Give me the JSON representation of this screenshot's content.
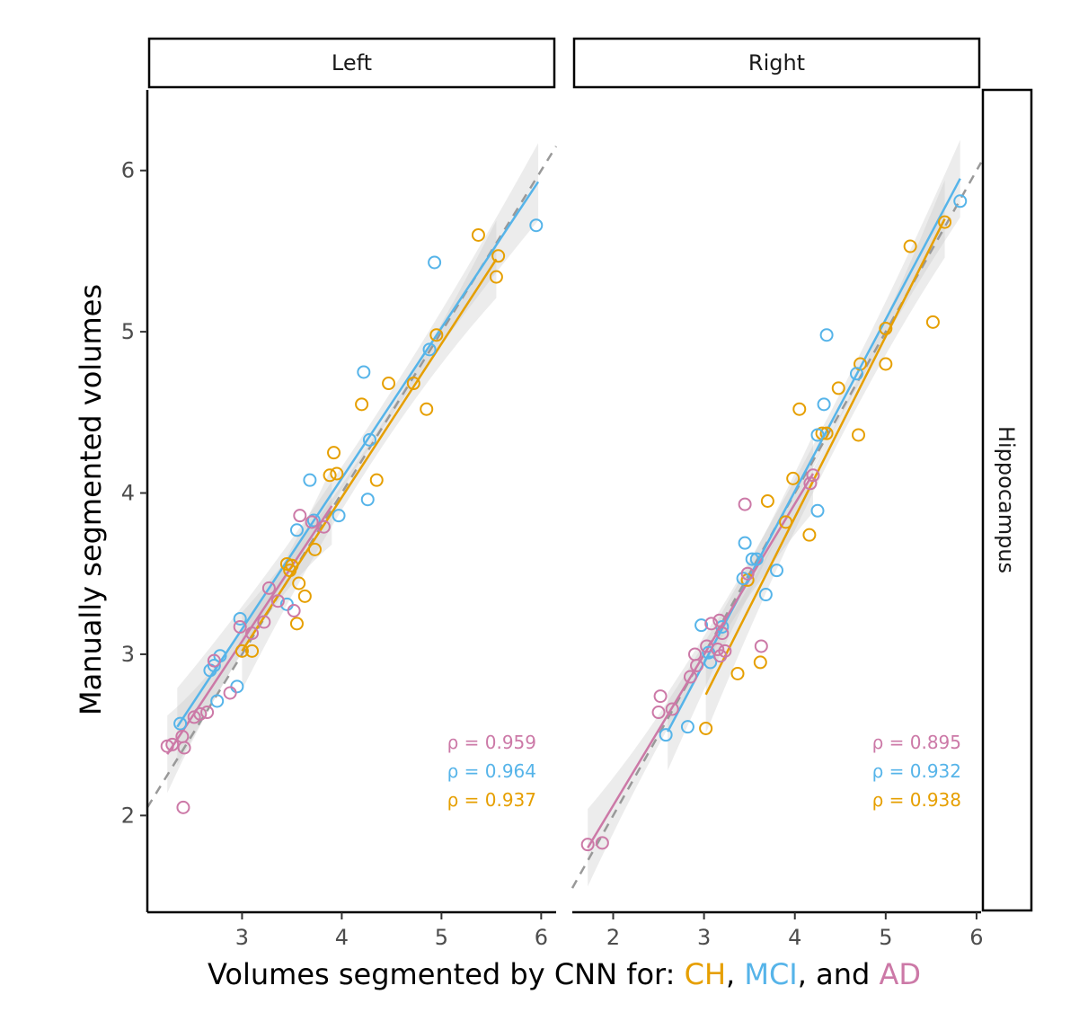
{
  "colors": {
    "CH": "#E69F00",
    "MCI": "#56B4E9",
    "AD": "#CC79A7",
    "identity": "#999999",
    "ribbon": "#c8c8c8"
  },
  "axis_labels": {
    "y": "Manually segmented volumes",
    "x_prefix": "Volumes segmented by CNN for: ",
    "x_ch": "CH",
    "x_sep1": ", ",
    "x_mci": "MCI",
    "x_sep2": ", and ",
    "x_ad": "AD"
  },
  "facet_row_label": "Hippocampus",
  "chart_data": [
    {
      "type": "scatter",
      "facet": "Left",
      "xlim": [
        2.05,
        6.15
      ],
      "ylim": [
        1.4,
        6.5
      ],
      "xticks": [
        3,
        4,
        5,
        6
      ],
      "yticks": [
        2,
        3,
        4,
        5,
        6
      ],
      "identity_line": true,
      "rho_labels": [
        {
          "group": "AD",
          "text": "ρ = 0.959"
        },
        {
          "group": "MCI",
          "text": "ρ = 0.964"
        },
        {
          "group": "CH",
          "text": "ρ = 0.937"
        }
      ],
      "series": [
        {
          "name": "CH",
          "fit": {
            "x": [
              3.0,
              5.55
            ],
            "y": [
              3.02,
              5.45
            ]
          },
          "points": [
            [
              3.0,
              3.02
            ],
            [
              3.1,
              3.02
            ],
            [
              3.45,
              3.56
            ],
            [
              3.48,
              3.52
            ],
            [
              3.5,
              3.55
            ],
            [
              3.57,
              3.44
            ],
            [
              3.55,
              3.19
            ],
            [
              3.63,
              3.36
            ],
            [
              3.73,
              3.65
            ],
            [
              3.88,
              4.11
            ],
            [
              3.92,
              4.25
            ],
            [
              3.95,
              4.12
            ],
            [
              4.35,
              4.08
            ],
            [
              4.2,
              4.55
            ],
            [
              4.47,
              4.68
            ],
            [
              4.72,
              4.68
            ],
            [
              4.85,
              4.52
            ],
            [
              4.95,
              4.98
            ],
            [
              5.37,
              5.6
            ],
            [
              5.55,
              5.34
            ],
            [
              5.57,
              5.47
            ]
          ]
        },
        {
          "name": "MCI",
          "fit": {
            "x": [
              2.35,
              5.97
            ],
            "y": [
              2.55,
              5.93
            ]
          },
          "points": [
            [
              2.38,
              2.57
            ],
            [
              2.68,
              2.9
            ],
            [
              2.78,
              2.99
            ],
            [
              2.72,
              2.93
            ],
            [
              2.75,
              2.71
            ],
            [
              2.95,
              2.8
            ],
            [
              2.98,
              3.22
            ],
            [
              3.45,
              3.31
            ],
            [
              3.55,
              3.77
            ],
            [
              3.68,
              4.08
            ],
            [
              3.72,
              3.83
            ],
            [
              3.97,
              3.86
            ],
            [
              4.26,
              3.96
            ],
            [
              4.28,
              4.33
            ],
            [
              4.22,
              4.75
            ],
            [
              4.88,
              4.89
            ],
            [
              4.93,
              5.43
            ],
            [
              5.95,
              5.66
            ]
          ]
        },
        {
          "name": "AD",
          "fit": {
            "x": [
              2.25,
              3.9
            ],
            "y": [
              2.38,
              3.92
            ]
          },
          "points": [
            [
              2.25,
              2.43
            ],
            [
              2.3,
              2.44
            ],
            [
              2.4,
              2.49
            ],
            [
              2.42,
              2.42
            ],
            [
              2.41,
              2.05
            ],
            [
              2.52,
              2.61
            ],
            [
              2.58,
              2.63
            ],
            [
              2.65,
              2.64
            ],
            [
              2.72,
              2.96
            ],
            [
              2.88,
              2.76
            ],
            [
              2.98,
              3.17
            ],
            [
              3.1,
              3.13
            ],
            [
              3.22,
              3.2
            ],
            [
              3.27,
              3.41
            ],
            [
              3.36,
              3.33
            ],
            [
              3.52,
              3.27
            ],
            [
              3.58,
              3.86
            ],
            [
              3.7,
              3.82
            ],
            [
              3.82,
              3.79
            ]
          ]
        }
      ]
    },
    {
      "type": "scatter",
      "facet": "Right",
      "xlim": [
        1.55,
        6.05
      ],
      "ylim": [
        1.4,
        6.5
      ],
      "xticks": [
        2,
        3,
        4,
        5,
        6
      ],
      "yticks": [
        2,
        3,
        4,
        5,
        6
      ],
      "identity_line": true,
      "rho_labels": [
        {
          "group": "AD",
          "text": "ρ = 0.895"
        },
        {
          "group": "MCI",
          "text": "ρ = 0.932"
        },
        {
          "group": "CH",
          "text": "ρ = 0.938"
        }
      ],
      "series": [
        {
          "name": "CH",
          "fit": {
            "x": [
              3.02,
              5.65
            ],
            "y": [
              2.75,
              5.7
            ]
          },
          "points": [
            [
              3.02,
              2.54
            ],
            [
              3.37,
              2.88
            ],
            [
              3.48,
              3.46
            ],
            [
              3.62,
              2.95
            ],
            [
              3.7,
              3.95
            ],
            [
              3.9,
              3.82
            ],
            [
              3.98,
              4.09
            ],
            [
              4.05,
              4.52
            ],
            [
              4.16,
              3.74
            ],
            [
              4.3,
              4.37
            ],
            [
              4.35,
              4.37
            ],
            [
              4.48,
              4.65
            ],
            [
              4.7,
              4.36
            ],
            [
              4.72,
              4.8
            ],
            [
              5.0,
              5.02
            ],
            [
              5.0,
              4.8
            ],
            [
              5.27,
              5.53
            ],
            [
              5.52,
              5.06
            ],
            [
              5.65,
              5.68
            ]
          ]
        },
        {
          "name": "MCI",
          "fit": {
            "x": [
              2.6,
              5.82
            ],
            "y": [
              2.52,
              5.95
            ]
          },
          "points": [
            [
              2.58,
              2.5
            ],
            [
              2.82,
              2.55
            ],
            [
              2.97,
              3.18
            ],
            [
              3.07,
              2.95
            ],
            [
              3.05,
              3.01
            ],
            [
              3.2,
              3.17
            ],
            [
              3.43,
              3.47
            ],
            [
              3.45,
              3.69
            ],
            [
              3.53,
              3.59
            ],
            [
              3.58,
              3.59
            ],
            [
              3.68,
              3.37
            ],
            [
              3.8,
              3.52
            ],
            [
              4.25,
              3.89
            ],
            [
              4.25,
              4.36
            ],
            [
              4.32,
              4.55
            ],
            [
              4.35,
              4.98
            ],
            [
              4.68,
              4.74
            ],
            [
              5.82,
              5.81
            ]
          ]
        },
        {
          "name": "AD",
          "fit": {
            "x": [
              1.72,
              4.2
            ],
            "y": [
              1.8,
              4.12
            ]
          },
          "points": [
            [
              1.72,
              1.82
            ],
            [
              1.88,
              1.83
            ],
            [
              2.5,
              2.64
            ],
            [
              2.52,
              2.74
            ],
            [
              2.65,
              2.66
            ],
            [
              2.85,
              2.86
            ],
            [
              2.9,
              3.0
            ],
            [
              2.92,
              2.93
            ],
            [
              3.03,
              3.05
            ],
            [
              3.08,
              3.19
            ],
            [
              3.15,
              3.03
            ],
            [
              3.18,
              2.99
            ],
            [
              3.17,
              3.21
            ],
            [
              3.2,
              3.13
            ],
            [
              3.23,
              3.02
            ],
            [
              3.45,
              3.93
            ],
            [
              3.48,
              3.5
            ],
            [
              3.63,
              3.05
            ],
            [
              4.17,
              4.06
            ],
            [
              4.2,
              4.11
            ]
          ]
        }
      ]
    }
  ]
}
